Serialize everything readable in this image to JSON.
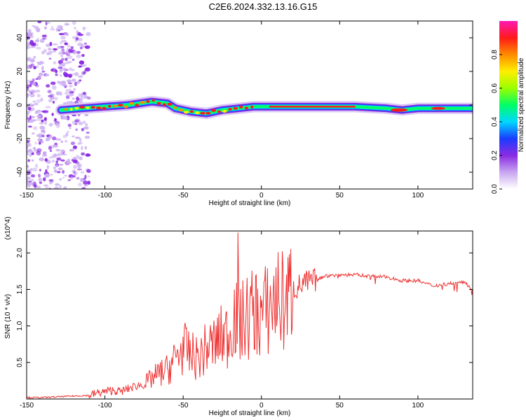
{
  "title": "C2E6.2024.332.13.16.G15",
  "chart_data": [
    {
      "type": "heatmap",
      "xlabel": "Height of straight line (km)",
      "ylabel": "Frequency (Hz)",
      "xlim": [
        -150,
        135
      ],
      "ylim": [
        -50,
        50
      ],
      "xticks": [
        -150,
        -100,
        -50,
        0,
        50,
        100
      ],
      "yticks": [
        -40,
        -20,
        0,
        20,
        40
      ],
      "colorbar": {
        "label": "Normalized spectral amplitude",
        "range": [
          0,
          1
        ],
        "ticks": [
          "0.0",
          "0.2",
          "0.4",
          "0.6",
          "0.8"
        ],
        "colors": [
          "#ffffff",
          "#c8a6f0",
          "#8a2be2",
          "#1a3cff",
          "#00d8ff",
          "#00ff66",
          "#9aff00",
          "#ffee00",
          "#ff8c00",
          "#ff1a1a",
          "#ff1ab4"
        ]
      },
      "ridge": [
        {
          "x": -128,
          "y": -3
        },
        {
          "x": -115,
          "y": -2
        },
        {
          "x": -100,
          "y": -1
        },
        {
          "x": -85,
          "y": 0
        },
        {
          "x": -70,
          "y": 2
        },
        {
          "x": -60,
          "y": 1
        },
        {
          "x": -55,
          "y": -2
        },
        {
          "x": -45,
          "y": -4
        },
        {
          "x": -35,
          "y": -5
        },
        {
          "x": -25,
          "y": -3
        },
        {
          "x": -15,
          "y": -2
        },
        {
          "x": -5,
          "y": -1
        },
        {
          "x": 5,
          "y": -1
        },
        {
          "x": 20,
          "y": -1
        },
        {
          "x": 60,
          "y": -1
        },
        {
          "x": 80,
          "y": -2
        },
        {
          "x": 90,
          "y": -3
        },
        {
          "x": 100,
          "y": -2
        },
        {
          "x": 120,
          "y": -2
        },
        {
          "x": 135,
          "y": -2
        }
      ]
    },
    {
      "type": "line",
      "xlabel": "Height of straight line (km)",
      "ylabel": "SNR (10 * v/v)",
      "multiplier": "(x10^4)",
      "xlim": [
        -150,
        135
      ],
      "ylim": [
        0,
        2.3
      ],
      "xticks": [
        -150,
        -100,
        -50,
        0,
        50,
        100
      ],
      "yticks": [
        "0.5",
        "1.0",
        "1.5",
        "2.0"
      ],
      "series": [
        {
          "color": "#ee3333",
          "x": [
            -150,
            -140,
            -130,
            -120,
            -110,
            -105,
            -100,
            -95,
            -90,
            -85,
            -80,
            -75,
            -70,
            -65,
            -60,
            -55,
            -50,
            -45,
            -40,
            -35,
            -30,
            -25,
            -20,
            -18,
            -15,
            -10,
            -5,
            0,
            5,
            10,
            15,
            20,
            25,
            30,
            35,
            40,
            50,
            60,
            70,
            80,
            90,
            100,
            105,
            110,
            120,
            130,
            135
          ],
          "y": [
            0.02,
            0.02,
            0.03,
            0.04,
            0.05,
            0.08,
            0.1,
            0.12,
            0.1,
            0.14,
            0.18,
            0.2,
            0.28,
            0.35,
            0.4,
            0.55,
            0.7,
            0.6,
            0.55,
            0.7,
            0.75,
            0.85,
            0.9,
            1.2,
            1.0,
            1.1,
            1.2,
            1.15,
            1.25,
            1.4,
            1.3,
            1.5,
            1.55,
            1.6,
            1.62,
            1.68,
            1.7,
            1.7,
            1.68,
            1.67,
            1.62,
            1.62,
            1.58,
            1.55,
            1.58,
            1.6,
            1.5
          ]
        }
      ]
    }
  ]
}
